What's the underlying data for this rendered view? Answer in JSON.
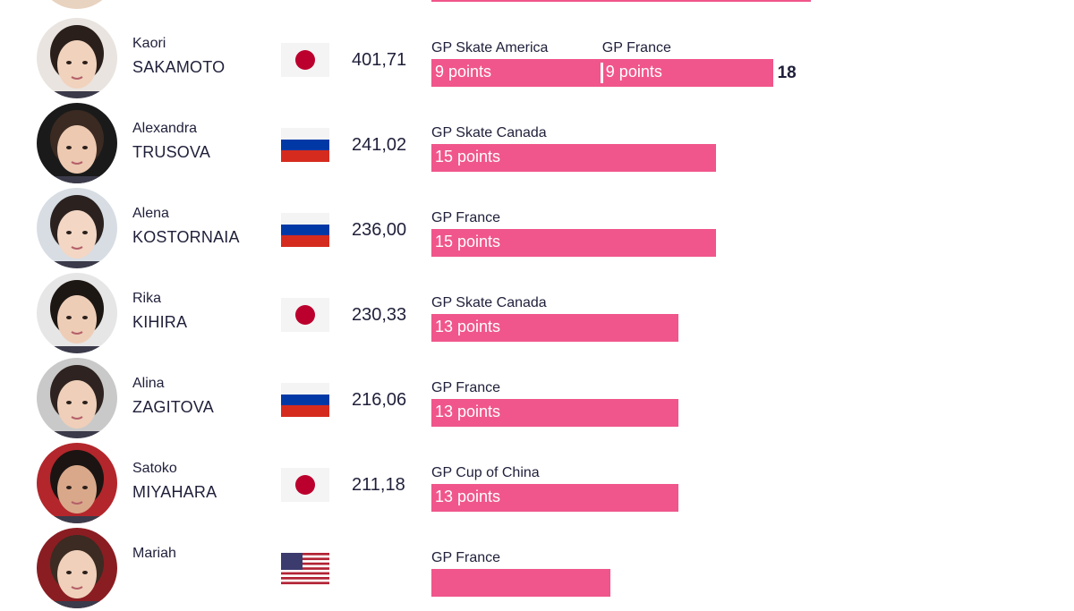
{
  "colors": {
    "bar": "#f0568b",
    "text": "#1f1f3a",
    "flag_red": "#bc002d",
    "flag_ru_white": "#ffffff",
    "flag_ru_blue": "#0039a6",
    "flag_ru_red": "#d52b1e",
    "flag_us_blue": "#3c3b6e",
    "flag_us_red": "#b22234"
  },
  "chart_data": {
    "type": "bar",
    "orientation": "horizontal-stacked",
    "skaters": [
      {
        "first_name": "Kaori",
        "last_name": "SAKAMOTO",
        "flag": "japan-flag-icon",
        "score": "401,71",
        "segments": [
          {
            "event": "GP Skate America",
            "points": 9,
            "label": "9 points"
          },
          {
            "event": "GP France",
            "points": 9,
            "label": "9 points"
          }
        ],
        "total": "18"
      },
      {
        "first_name": "Alexandra",
        "last_name": "TRUSOVA",
        "flag": "russia-flag-icon",
        "score": "241,02",
        "segments": [
          {
            "event": "GP Skate Canada",
            "points": 15,
            "label": "15 points"
          }
        ]
      },
      {
        "first_name": "Alena",
        "last_name": "KOSTORNAIA",
        "flag": "russia-flag-icon",
        "score": "236,00",
        "segments": [
          {
            "event": "GP France",
            "points": 15,
            "label": "15 points"
          }
        ]
      },
      {
        "first_name": "Rika",
        "last_name": "KIHIRA",
        "flag": "japan-flag-icon",
        "score": "230,33",
        "segments": [
          {
            "event": "GP Skate Canada",
            "points": 13,
            "label": "13 points"
          }
        ]
      },
      {
        "first_name": "Alina",
        "last_name": "ZAGITOVA",
        "flag": "russia-flag-icon",
        "score": "216,06",
        "segments": [
          {
            "event": "GP France",
            "points": 13,
            "label": "13 points"
          }
        ]
      },
      {
        "first_name": "Satoko",
        "last_name": "MIYAHARA",
        "flag": "japan-flag-icon",
        "score": "211,18",
        "segments": [
          {
            "event": "GP Cup of China",
            "points": 13,
            "label": "13 points"
          }
        ]
      },
      {
        "first_name": "Mariah",
        "last_name": "",
        "flag": "usa-flag-icon",
        "score": "",
        "segments": [
          {
            "event": "GP France",
            "points": null,
            "label": ""
          }
        ]
      }
    ]
  }
}
